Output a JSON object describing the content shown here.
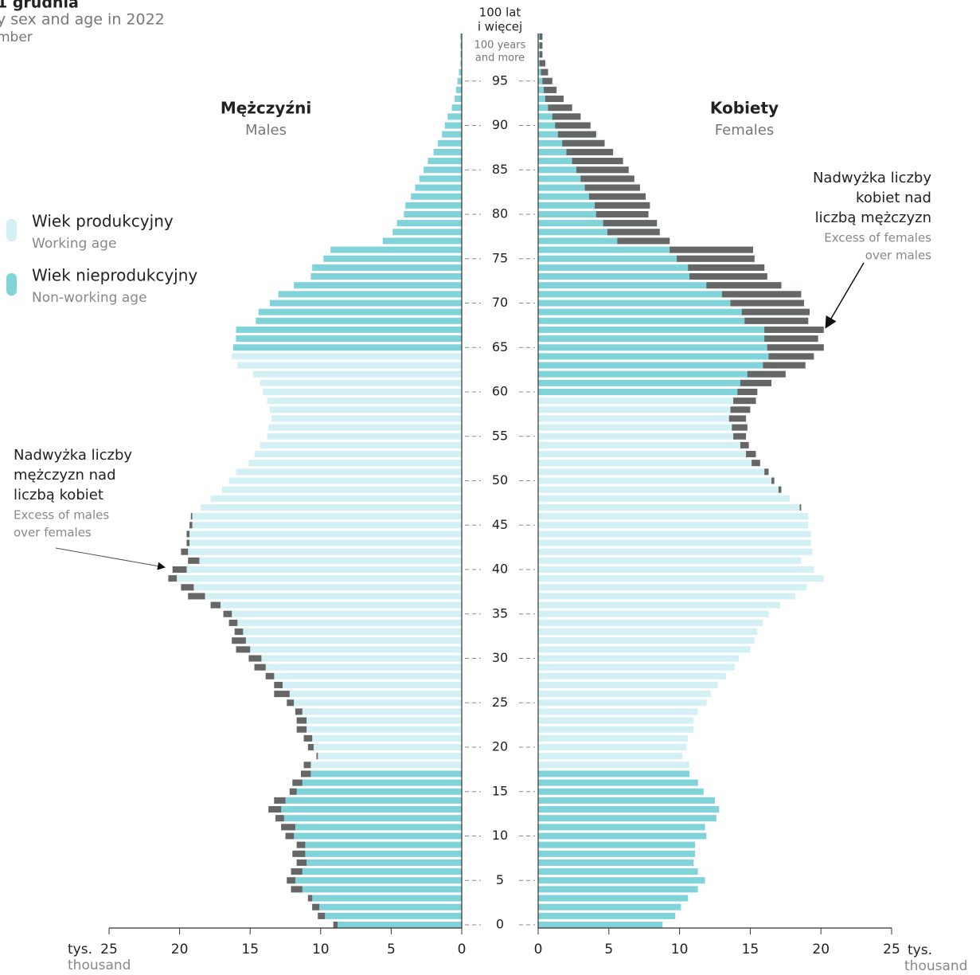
{
  "chart_data": {
    "type": "population_pyramid",
    "title": "1 grudnia",
    "subtitle": "y sex and age in 2022",
    "subtitle_line2": "mber",
    "y": [
      0,
      1,
      2,
      3,
      4,
      5,
      6,
      7,
      8,
      9,
      10,
      11,
      12,
      13,
      14,
      15,
      16,
      17,
      18,
      19,
      20,
      21,
      22,
      23,
      24,
      25,
      26,
      27,
      28,
      29,
      30,
      31,
      32,
      33,
      34,
      35,
      36,
      37,
      38,
      39,
      40,
      41,
      42,
      43,
      44,
      45,
      46,
      47,
      48,
      49,
      50,
      51,
      52,
      53,
      54,
      55,
      56,
      57,
      58,
      59,
      60,
      61,
      62,
      63,
      64,
      65,
      66,
      67,
      68,
      69,
      70,
      71,
      72,
      73,
      74,
      75,
      76,
      77,
      78,
      79,
      80,
      81,
      82,
      83,
      84,
      85,
      86,
      87,
      88,
      89,
      90,
      91,
      92,
      93,
      94,
      95,
      96,
      97,
      98,
      99,
      100
    ],
    "ylim": [
      0,
      100
    ],
    "yticks": [
      0,
      5,
      10,
      15,
      20,
      25,
      30,
      35,
      40,
      45,
      50,
      55,
      60,
      65,
      70,
      75,
      80,
      85,
      90,
      95
    ],
    "top_label": [
      "100 lat",
      "i więcej"
    ],
    "top_label_en": [
      "100 years",
      "and more"
    ],
    "xlim": [
      0,
      25
    ],
    "xticks": [
      0,
      5,
      10,
      15,
      20,
      25
    ],
    "axis_unit": "tys.",
    "axis_unit_en": "thousand",
    "excess_color": "#666666",
    "legend": [
      {
        "name": "Wiek produkcyjny",
        "name_en": "Working age",
        "color": "#d3f0f4"
      },
      {
        "name": "Wiek nieprodukcyjny",
        "name_en": "Non-working age",
        "color": "#7fd3d9"
      }
    ],
    "series": [
      {
        "name": "Mężczyźni",
        "name_en": "Males",
        "side": "left",
        "working_age": [
          18,
          64
        ],
        "values": [
          9.1,
          10.2,
          10.6,
          10.9,
          12.1,
          12.4,
          12.1,
          11.7,
          12.0,
          11.7,
          12.5,
          12.8,
          13.2,
          13.7,
          13.3,
          12.2,
          12.0,
          11.4,
          11.2,
          10.3,
          10.9,
          11.2,
          11.7,
          11.7,
          11.8,
          12.4,
          13.3,
          13.3,
          13.9,
          14.7,
          15.1,
          16.0,
          16.3,
          16.1,
          16.5,
          16.9,
          17.8,
          19.4,
          19.9,
          20.8,
          20.5,
          19.4,
          19.9,
          19.5,
          19.5,
          19.3,
          19.2,
          18.5,
          17.8,
          17.0,
          16.5,
          16.0,
          15.1,
          14.7,
          14.3,
          13.8,
          13.7,
          13.5,
          13.6,
          13.8,
          14.1,
          14.3,
          14.8,
          15.9,
          16.3,
          16.2,
          16.0,
          16.0,
          14.6,
          14.4,
          13.6,
          13.0,
          11.9,
          10.7,
          10.6,
          9.8,
          9.3,
          5.6,
          4.9,
          4.6,
          4.1,
          4.0,
          3.6,
          3.3,
          3.0,
          2.7,
          2.4,
          2.0,
          1.7,
          1.4,
          1.2,
          1.0,
          0.7,
          0.5,
          0.4,
          0.3,
          0.2,
          0.1,
          0.1,
          0.1,
          0.1
        ]
      },
      {
        "name": "Kobiety",
        "name_en": "Females",
        "side": "right",
        "working_age": [
          18,
          59
        ],
        "values": [
          8.8,
          9.7,
          10.1,
          10.6,
          11.3,
          11.8,
          11.3,
          11.0,
          11.1,
          11.1,
          11.9,
          11.8,
          12.6,
          12.8,
          12.5,
          11.7,
          11.3,
          10.7,
          10.7,
          10.2,
          10.5,
          10.6,
          11.0,
          11.0,
          11.3,
          11.9,
          12.2,
          12.7,
          13.3,
          13.9,
          14.2,
          15.0,
          15.3,
          15.5,
          15.9,
          16.3,
          17.1,
          18.2,
          19.0,
          20.2,
          19.5,
          18.6,
          19.4,
          19.3,
          19.3,
          19.1,
          19.1,
          18.6,
          17.8,
          17.2,
          16.7,
          16.3,
          15.7,
          15.4,
          14.9,
          14.7,
          14.8,
          14.7,
          15.0,
          15.4,
          15.5,
          16.5,
          17.5,
          18.9,
          19.5,
          20.2,
          19.8,
          20.2,
          19.1,
          19.2,
          18.8,
          18.6,
          17.2,
          16.2,
          16.0,
          15.3,
          15.2,
          9.3,
          8.6,
          8.4,
          7.8,
          7.9,
          7.6,
          7.2,
          6.8,
          6.4,
          6.0,
          5.3,
          4.7,
          4.1,
          3.7,
          3.0,
          2.4,
          1.8,
          1.3,
          1.0,
          0.7,
          0.5,
          0.3,
          0.3,
          0.3
        ]
      }
    ],
    "annotations": [
      {
        "lines": [
          "Nadwyżka liczby",
          "kobiet nad",
          "liczbą mężczyzn"
        ],
        "lines_en": [
          "Excess of females",
          "over males"
        ]
      },
      {
        "lines": [
          "Nadwyżka liczby",
          "mężczyzn nad",
          "liczbą kobiet"
        ],
        "lines_en": [
          "Excess of males",
          "over females"
        ]
      }
    ]
  }
}
